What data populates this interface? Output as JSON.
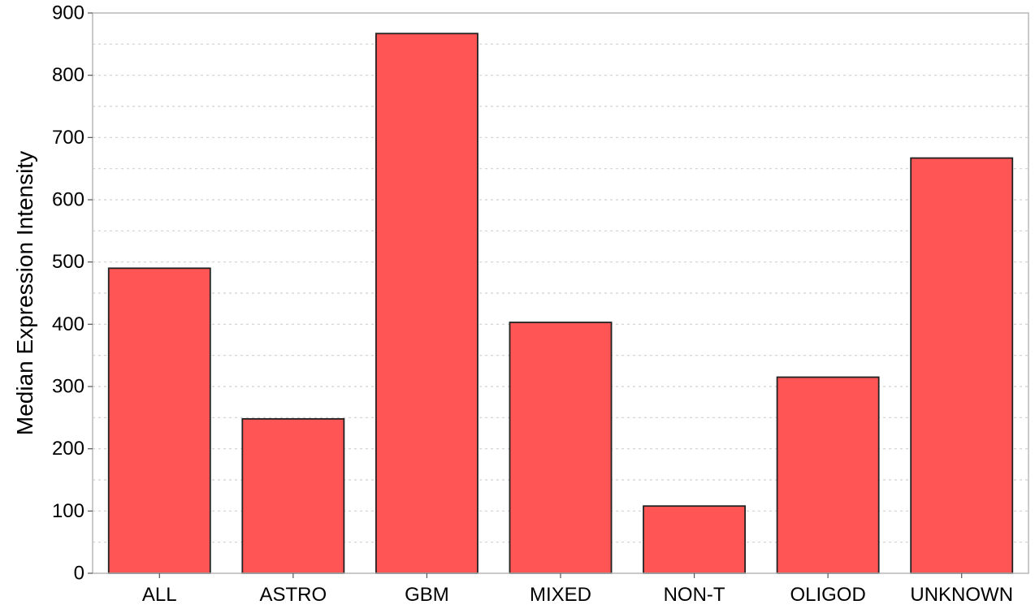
{
  "chart_data": {
    "type": "bar",
    "title": "",
    "xlabel": "",
    "ylabel": "Median Expression Intensity",
    "categories": [
      "ALL",
      "ASTRO",
      "GBM",
      "MIXED",
      "NON-T",
      "OLIGOD",
      "UNKNOWN"
    ],
    "values": [
      490,
      248,
      867,
      403,
      108,
      315,
      667
    ],
    "ylim": [
      0,
      900
    ],
    "yticks": [
      0,
      100,
      200,
      300,
      400,
      500,
      600,
      700,
      800,
      900
    ],
    "ytick_labels": [
      "0",
      "100",
      "200",
      "300",
      "400",
      "500",
      "600",
      "700",
      "800",
      "900"
    ],
    "grid": true,
    "legend": "none",
    "colors": {
      "bar_fill": "#ff5555",
      "bar_stroke": "#222222",
      "grid": "#d0d0d0"
    }
  }
}
